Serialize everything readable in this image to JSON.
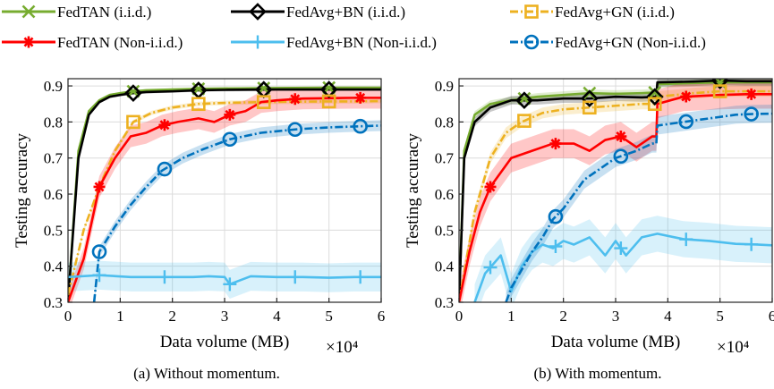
{
  "legend": {
    "entries": [
      {
        "key": "fedtan_iid",
        "label": "FedTAN (i.i.d.)",
        "color": "#77AC30",
        "marker": "x",
        "dash": "solid"
      },
      {
        "key": "fedavgbn_iid",
        "label": "FedAvg+BN (i.i.d.)",
        "color": "#000000",
        "marker": "diamond",
        "dash": "solid"
      },
      {
        "key": "fedavggn_iid",
        "label": "FedAvg+GN (i.i.d.)",
        "color": "#EDB120",
        "marker": "square",
        "dash": "dashdot"
      },
      {
        "key": "fedtan_non",
        "label": "FedTAN (Non-i.i.d.)",
        "color": "#FF0000",
        "marker": "asterisk",
        "dash": "solid"
      },
      {
        "key": "fedavgbn_non",
        "label": "FedAvg+BN (Non-i.i.d.)",
        "color": "#4DBEEE",
        "marker": "plus",
        "dash": "solid"
      },
      {
        "key": "fedavggn_non",
        "label": "FedAvg+GN (Non-i.i.d.)",
        "color": "#0072BD",
        "marker": "circle",
        "dash": "dashdot"
      }
    ]
  },
  "chart_data": [
    {
      "type": "line",
      "caption": "(a) Without momentum.",
      "xlabel": "Data volume (MB)",
      "x_multiplier": "×10⁴",
      "ylabel": "Testing accuracy",
      "xlim": [
        0,
        6
      ],
      "ylim": [
        0.3,
        0.92
      ],
      "xticks": [
        "0",
        "1",
        "2",
        "3",
        "4",
        "5",
        "6"
      ],
      "yticks": [
        "0.3",
        "0.4",
        "0.5",
        "0.6",
        "0.7",
        "0.8",
        "0.9"
      ],
      "grid": true,
      "series": [
        {
          "key": "fedtan_iid",
          "x": [
            0,
            0.2,
            0.4,
            0.6,
            0.8,
            1.0,
            1.25,
            1.5,
            2.0,
            2.5,
            3.0,
            4.0,
            5.0,
            6.0
          ],
          "y": [
            0.3,
            0.72,
            0.83,
            0.86,
            0.875,
            0.88,
            0.885,
            0.888,
            0.89,
            0.892,
            0.893,
            0.894,
            0.895,
            0.895
          ],
          "band": 0.003
        },
        {
          "key": "fedavgbn_iid",
          "x": [
            0,
            0.2,
            0.4,
            0.6,
            0.8,
            1.0,
            1.25,
            1.5,
            2.0,
            2.5,
            3.0,
            4.0,
            5.0,
            6.0
          ],
          "y": [
            0.3,
            0.7,
            0.82,
            0.855,
            0.87,
            0.875,
            0.88,
            0.883,
            0.885,
            0.888,
            0.889,
            0.89,
            0.89,
            0.89
          ],
          "band": 0.004
        },
        {
          "key": "fedavggn_iid",
          "x": [
            0,
            0.3,
            0.6,
            0.9,
            1.25,
            1.6,
            2.0,
            2.5,
            3.0,
            3.7,
            4.3,
            5.0,
            5.5,
            6.0
          ],
          "y": [
            0.32,
            0.5,
            0.62,
            0.72,
            0.8,
            0.825,
            0.84,
            0.85,
            0.853,
            0.855,
            0.856,
            0.857,
            0.857,
            0.858
          ],
          "band": 0.006
        },
        {
          "key": "fedtan_non",
          "x": [
            0,
            0.3,
            0.6,
            0.9,
            1.2,
            1.5,
            1.8,
            2.1,
            2.5,
            2.8,
            3.1,
            3.4,
            3.7,
            4.0,
            4.5,
            5.0,
            5.5,
            6.0
          ],
          "y": [
            0.3,
            0.42,
            0.62,
            0.7,
            0.76,
            0.77,
            0.79,
            0.8,
            0.81,
            0.8,
            0.82,
            0.83,
            0.855,
            0.86,
            0.865,
            0.866,
            0.867,
            0.867
          ],
          "band": 0.03
        },
        {
          "key": "fedavgbn_non",
          "x": [
            0,
            0.6,
            1.2,
            1.8,
            2.4,
            2.7,
            3.0,
            3.1,
            3.5,
            4.0,
            4.5,
            5.0,
            5.5,
            6.0
          ],
          "y": [
            0.37,
            0.375,
            0.37,
            0.37,
            0.37,
            0.372,
            0.37,
            0.35,
            0.372,
            0.37,
            0.37,
            0.368,
            0.37,
            0.37
          ],
          "band": 0.04
        },
        {
          "key": "fedavggn_non",
          "x": [
            0.5,
            0.6,
            0.9,
            1.2,
            1.5,
            1.8,
            2.2,
            2.6,
            3.1,
            3.7,
            4.4,
            5.0,
            5.6,
            6.0
          ],
          "y": [
            0.3,
            0.44,
            0.51,
            0.57,
            0.62,
            0.665,
            0.7,
            0.725,
            0.752,
            0.77,
            0.78,
            0.785,
            0.788,
            0.79
          ],
          "band": 0.015
        }
      ]
    },
    {
      "type": "line",
      "caption": "(b) With momentum.",
      "xlabel": "Data volume (MB)",
      "x_multiplier": "×10⁴",
      "ylabel": "Testing accuracy",
      "xlim": [
        0,
        6
      ],
      "ylim": [
        0.3,
        0.92
      ],
      "xticks": [
        "0",
        "1",
        "2",
        "3",
        "4",
        "5",
        "6"
      ],
      "yticks": [
        "0.3",
        "0.4",
        "0.5",
        "0.6",
        "0.7",
        "0.8",
        "0.9"
      ],
      "grid": true,
      "series": [
        {
          "key": "fedtan_iid",
          "x": [
            0,
            0.1,
            0.3,
            0.6,
            1.0,
            1.5,
            2.0,
            2.5,
            3.0,
            3.5,
            3.78,
            3.8,
            4.5,
            5.0,
            5.5,
            6.0
          ],
          "y": [
            0.3,
            0.72,
            0.82,
            0.85,
            0.86,
            0.87,
            0.875,
            0.88,
            0.878,
            0.88,
            0.882,
            0.905,
            0.908,
            0.91,
            0.91,
            0.91
          ],
          "band": 0.01
        },
        {
          "key": "fedavgbn_iid",
          "x": [
            0,
            0.1,
            0.3,
            0.6,
            1.0,
            1.5,
            2.0,
            2.5,
            3.0,
            3.5,
            3.78,
            3.8,
            4.5,
            5.0,
            5.5,
            6.0
          ],
          "y": [
            0.3,
            0.7,
            0.8,
            0.84,
            0.86,
            0.86,
            0.865,
            0.865,
            0.87,
            0.868,
            0.87,
            0.91,
            0.912,
            0.915,
            0.913,
            0.913
          ],
          "band": 0.012
        },
        {
          "key": "fedavggn_iid",
          "x": [
            0,
            0.3,
            0.6,
            0.9,
            1.2,
            1.6,
            2.0,
            2.5,
            3.0,
            3.5,
            3.78,
            3.8,
            4.5,
            5.0,
            5.5,
            6.0
          ],
          "y": [
            0.3,
            0.55,
            0.7,
            0.77,
            0.8,
            0.825,
            0.835,
            0.84,
            0.845,
            0.85,
            0.85,
            0.87,
            0.88,
            0.885,
            0.885,
            0.885
          ],
          "band": 0.015
        },
        {
          "key": "fedtan_non",
          "x": [
            0,
            0.2,
            0.4,
            0.6,
            0.8,
            1.0,
            1.4,
            1.8,
            2.2,
            2.5,
            2.8,
            3.1,
            3.4,
            3.7,
            3.78,
            3.8,
            4.3,
            5.0,
            5.5,
            6.0
          ],
          "y": [
            0.3,
            0.44,
            0.55,
            0.62,
            0.66,
            0.7,
            0.72,
            0.74,
            0.74,
            0.72,
            0.75,
            0.76,
            0.73,
            0.76,
            0.76,
            0.85,
            0.87,
            0.875,
            0.877,
            0.877
          ],
          "band": 0.04
        },
        {
          "key": "fedavgbn_non",
          "x": [
            0.3,
            0.5,
            0.8,
            1.0,
            1.2,
            1.4,
            1.6,
            1.8,
            2.0,
            2.2,
            2.5,
            2.8,
            3.0,
            3.2,
            3.5,
            3.8,
            4.3,
            4.8,
            5.3,
            5.7,
            6.0
          ],
          "y": [
            0.3,
            0.38,
            0.43,
            0.33,
            0.4,
            0.44,
            0.46,
            0.45,
            0.47,
            0.46,
            0.48,
            0.43,
            0.47,
            0.43,
            0.48,
            0.49,
            0.475,
            0.47,
            0.462,
            0.46,
            0.458
          ],
          "band": 0.05
        },
        {
          "key": "fedavggn_non",
          "x": [
            0.9,
            1.0,
            1.2,
            1.4,
            1.6,
            1.8,
            2.0,
            2.2,
            2.4,
            2.7,
            3.0,
            3.1,
            3.4,
            3.7,
            3.78,
            3.8,
            4.3,
            4.8,
            5.3,
            5.6,
            6.0
          ],
          "y": [
            0.3,
            0.34,
            0.39,
            0.44,
            0.48,
            0.53,
            0.56,
            0.6,
            0.64,
            0.67,
            0.7,
            0.705,
            0.72,
            0.74,
            0.74,
            0.79,
            0.8,
            0.81,
            0.82,
            0.822,
            0.823
          ],
          "band": 0.025
        }
      ]
    }
  ]
}
